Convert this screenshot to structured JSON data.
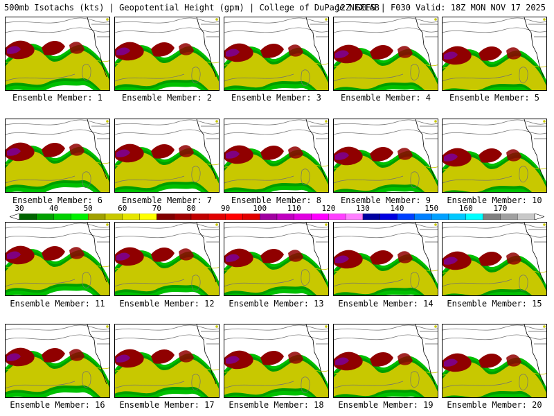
{
  "header": {
    "left": "500mb Isotachs (kts) | Geopotential Height (gpm) | College of DuPage NEXLAB",
    "right": "12Z GEFS | F030 Valid: 18Z MON NOV 17 2025"
  },
  "members": [
    "Ensemble Member: 1",
    "Ensemble Member: 2",
    "Ensemble Member: 3",
    "Ensemble Member: 4",
    "Ensemble Member: 5",
    "Ensemble Member: 6",
    "Ensemble Member: 7",
    "Ensemble Member: 8",
    "Ensemble Member: 9",
    "Ensemble Member: 10",
    "Ensemble Member: 11",
    "Ensemble Member: 12",
    "Ensemble Member: 13",
    "Ensemble Member: 14",
    "Ensemble Member: 15",
    "Ensemble Member: 16",
    "Ensemble Member: 17",
    "Ensemble Member: 18",
    "Ensemble Member: 19",
    "Ensemble Member: 20"
  ],
  "colorbar": {
    "labels": [
      "30",
      "40",
      "50",
      "60",
      "70",
      "80",
      "90",
      "100",
      "110",
      "120",
      "130",
      "140",
      "150",
      "160",
      "170"
    ],
    "colors": [
      "#006400",
      "#00a000",
      "#00d000",
      "#00f000",
      "#a0a000",
      "#c8c800",
      "#e6e600",
      "#ffff00",
      "#800000",
      "#a00000",
      "#c00000",
      "#e00000",
      "#ff0000",
      "#e00000",
      "#a000a0",
      "#c000c0",
      "#e000e0",
      "#ff00ff",
      "#ff40ff",
      "#ff80ff",
      "#0000a0",
      "#0000e0",
      "#0040ff",
      "#0080ff",
      "#00a0ff",
      "#00c8ff",
      "#00ffff",
      "#808080",
      "#a0a0a0",
      "#c8c8c8"
    ]
  },
  "colors": {
    "background": "#ffffff",
    "map_border": "#000000",
    "jet_green": "#00c000",
    "jet_dark_green": "#008000",
    "jet_yellow": "#c8c800",
    "jet_dark_red": "#900000",
    "jet_purple": "#800080",
    "contour_gray": "#707070"
  }
}
